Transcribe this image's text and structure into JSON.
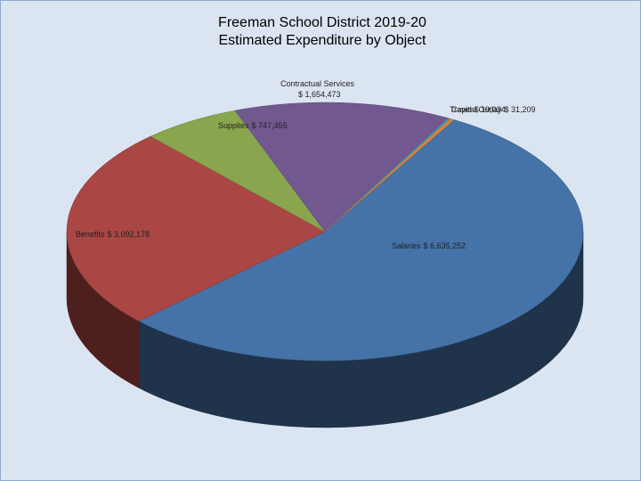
{
  "chart_data": {
    "type": "pie",
    "title": "Freeman School District 2019-20",
    "subtitle": "Estimated Expenditure by Object",
    "categories": [
      "Salaries",
      "Benefits",
      "Supplies",
      "Contractual Services",
      "Travel",
      "Capital Outlay"
    ],
    "values": [
      6635252,
      3092178,
      747455,
      1654473,
      19034,
      31209
    ],
    "value_labels": [
      "$ 6,635,252",
      "$ 3,092,178",
      "$ 747,455",
      "$ 1,654,473",
      "$ 19,034",
      "$ 31,209"
    ],
    "colors": [
      "#4572a7",
      "#aa4643",
      "#89a54e",
      "#71588f",
      "#4198af",
      "#db843d"
    ]
  }
}
